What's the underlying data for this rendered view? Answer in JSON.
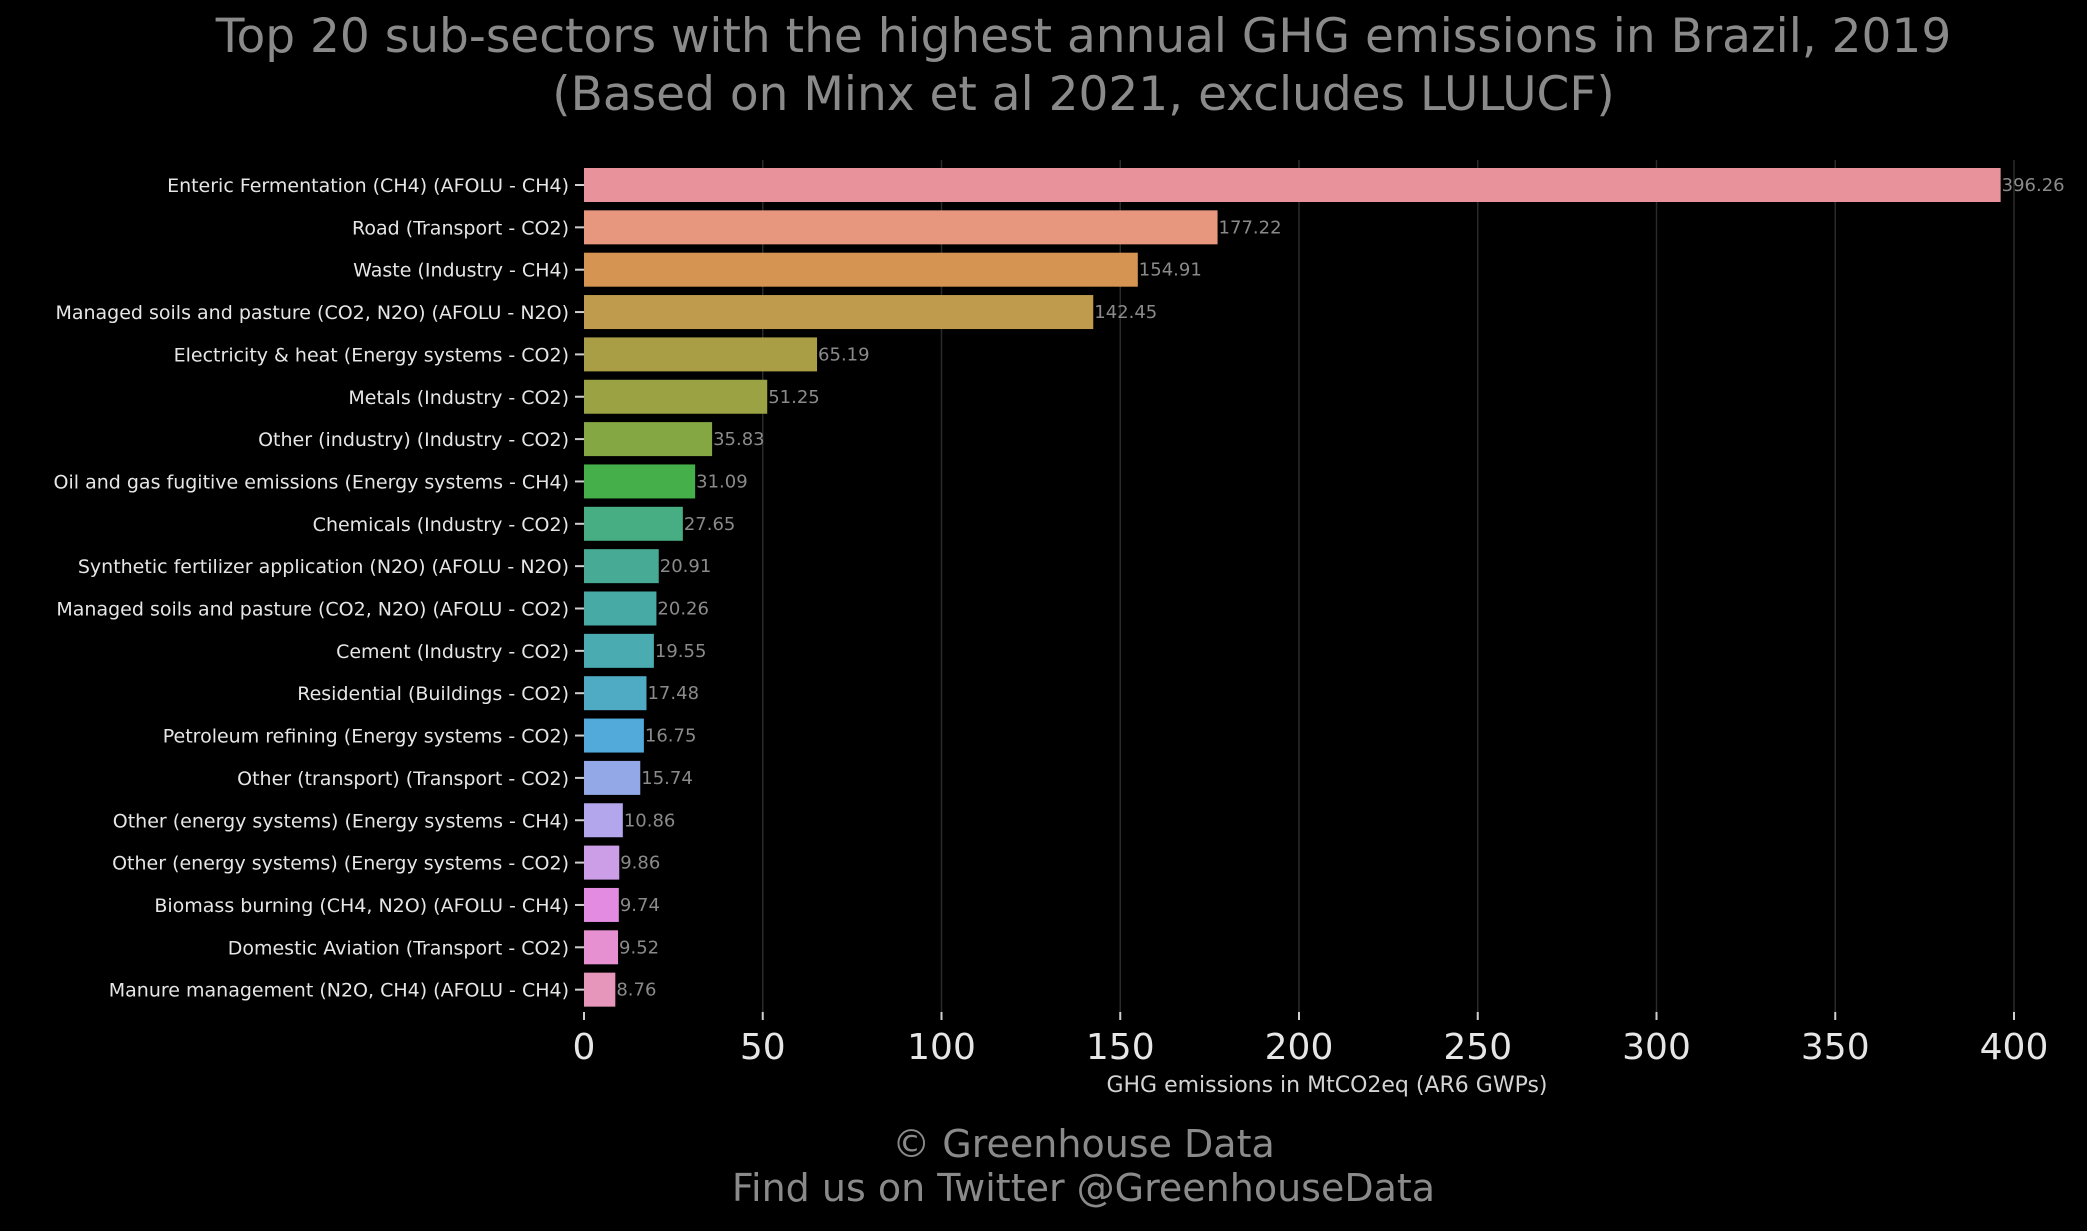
{
  "chart_data": {
    "type": "bar",
    "orientation": "horizontal",
    "title": "Top 20 sub-sectors with the highest annual GHG emissions in Brazil, 2019",
    "subtitle": "(Based on Minx et al 2021, excludes LULUCF)",
    "xlabel": "GHG emissions in MtCO2eq (AR6 GWPs)",
    "ylabel": "",
    "xlim": [
      0,
      405
    ],
    "xticks": [
      0,
      50,
      100,
      150,
      200,
      250,
      300,
      350,
      400
    ],
    "grid": "vertical",
    "background": "#000000",
    "categories": [
      "Enteric Fermentation (CH4) (AFOLU - CH4)",
      "Road (Transport - CO2)",
      "Waste (Industry - CH4)",
      "Managed soils and pasture (CO2, N2O) (AFOLU - N2O)",
      "Electricity & heat (Energy systems - CO2)",
      "Metals (Industry - CO2)",
      "Other (industry) (Industry - CO2)",
      "Oil and gas fugitive emissions (Energy systems - CH4)",
      "Chemicals (Industry - CO2)",
      "Synthetic fertilizer application (N2O) (AFOLU - N2O)",
      "Managed soils and pasture (CO2, N2O) (AFOLU - CO2)",
      "Cement (Industry - CO2)",
      "Residential (Buildings - CO2)",
      "Petroleum refining (Energy systems - CO2)",
      "Other (transport) (Transport - CO2)",
      "Other (energy systems) (Energy systems - CH4)",
      "Other (energy systems) (Energy systems - CO2)",
      "Biomass burning (CH4, N2O) (AFOLU - CH4)",
      "Domestic Aviation (Transport - CO2)",
      "Manure management (N2O, CH4) (AFOLU - CH4)"
    ],
    "values": [
      396.26,
      177.22,
      154.91,
      142.45,
      65.19,
      51.25,
      35.83,
      31.09,
      27.65,
      20.91,
      20.26,
      19.55,
      17.48,
      16.75,
      15.74,
      10.86,
      9.86,
      9.74,
      9.52,
      8.76
    ],
    "value_labels": [
      "396.26",
      "177.22",
      "154.91",
      "142.45",
      "65.19",
      "51.25",
      "35.83",
      "31.09",
      "27.65",
      "20.91",
      "20.26",
      "19.55",
      "17.48",
      "16.75",
      "15.74",
      "10.86",
      "9.86",
      "9.74",
      "9.52",
      "8.76"
    ],
    "colors": [
      "#e8929c",
      "#e8977f",
      "#d59452",
      "#bf9c4d",
      "#a99d46",
      "#9ba244",
      "#84a743",
      "#45b04a",
      "#46ae82",
      "#47aa95",
      "#48aaa5",
      "#4aabb1",
      "#4eabc3",
      "#51aad9",
      "#93a8e7",
      "#b3a6ec",
      "#cc9ee7",
      "#e28be0",
      "#e690d1",
      "#e796bb"
    ]
  },
  "footer": {
    "line1": "© Greenhouse Data",
    "line2": "Find us on Twitter @GreenhouseData"
  }
}
